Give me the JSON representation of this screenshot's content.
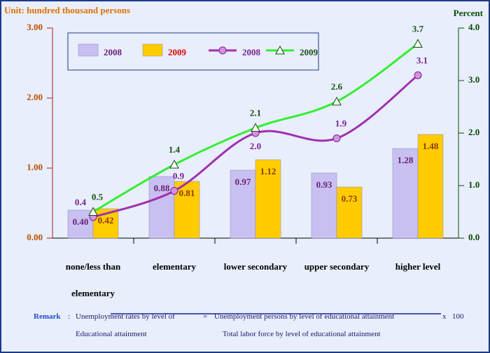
{
  "chart_data": {
    "type": "bar-line",
    "title": "Unit: hundred thousand persons",
    "y2_title": "Percent",
    "categories": [
      "none/less than elementary",
      "elementary",
      "lower secondary",
      "upper secondary",
      "higher level"
    ],
    "series": [
      {
        "name": "2008",
        "type": "bar",
        "color": "#c8c0f0",
        "label_color": "#6a1f7a",
        "values": [
          0.4,
          0.88,
          0.97,
          0.93,
          1.28
        ],
        "value_labels": [
          "0.40",
          "0.88",
          "0.97",
          "0.93",
          "1.28"
        ]
      },
      {
        "name": "2009",
        "type": "bar",
        "color": "#ffcc00",
        "label_color": "#8b3a00",
        "legend_color": "#e00000",
        "values": [
          0.42,
          0.81,
          1.12,
          0.73,
          1.48
        ],
        "value_labels": [
          "0.42",
          "0.81",
          "1.12",
          "0.73",
          "1.48"
        ]
      },
      {
        "name": "2008",
        "type": "line",
        "axis": "y2",
        "color": "#a030b0",
        "label_color": "#7a2090",
        "marker": "circle",
        "values": [
          0.4,
          0.9,
          2.0,
          1.9,
          3.1
        ],
        "value_labels": [
          "0.4",
          "0.9",
          "2.0",
          "1.9",
          "3.1"
        ]
      },
      {
        "name": "2009",
        "type": "line",
        "axis": "y2",
        "color": "#33ee33",
        "label_color": "#1a4d1a",
        "marker": "triangle",
        "values": [
          0.5,
          1.4,
          2.1,
          2.6,
          3.7
        ],
        "value_labels": [
          "0.5",
          "1.4",
          "2.1",
          "2.6",
          "3.7"
        ]
      }
    ],
    "ylim": [
      0,
      3
    ],
    "yticks": [
      {
        "value": 0,
        "label": "0.00"
      },
      {
        "value": 1,
        "label": "1.00"
      },
      {
        "value": 2,
        "label": "2.00"
      },
      {
        "value": 3,
        "label": "3.00"
      }
    ],
    "y2lim": [
      0,
      4
    ],
    "y2ticks": [
      {
        "value": 0,
        "label": "0.0"
      },
      {
        "value": 1,
        "label": "1.0"
      },
      {
        "value": 2,
        "label": "2.0"
      },
      {
        "value": 3,
        "label": "3.0"
      },
      {
        "value": 4,
        "label": "4.0"
      }
    ]
  },
  "remark": {
    "label": "Remark",
    "colon": ":",
    "lhs": "Unemployment rates by level of",
    "lhs2": "Educational attainment",
    "equals": "=",
    "numerator": "Unemployment persons by level of educational attainment",
    "times": "x",
    "factor": "100",
    "denominator": "Total labor force by level of educational attainment"
  }
}
